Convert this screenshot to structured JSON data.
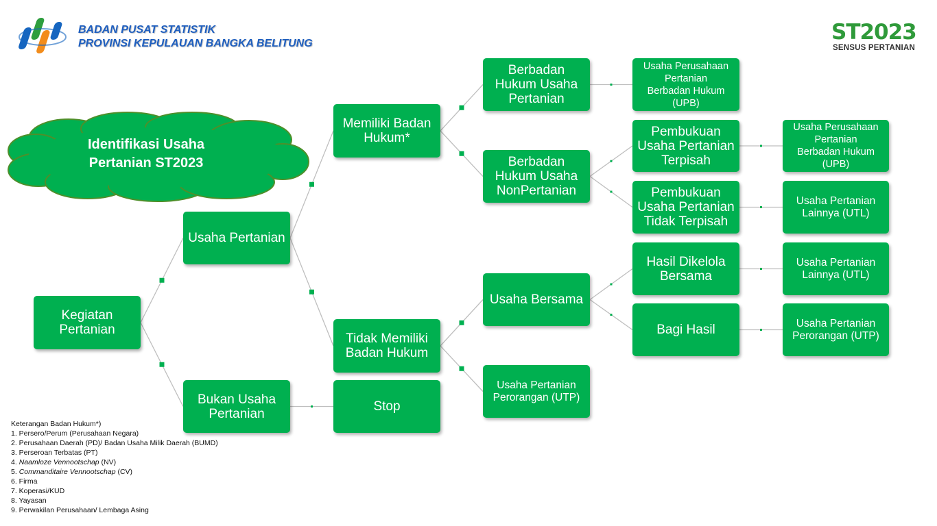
{
  "header": {
    "org_line1": "BADAN PUSAT STATISTIK",
    "org_line2": "PROVINSI KEPULAUAN BANGKA BELITUNG",
    "st_logo_text": "ST2023",
    "st_logo_sub": "SENSUS PERTANIAN"
  },
  "title_cloud": {
    "line1": "Identifikasi Usaha",
    "line2": "Pertanian ST2023"
  },
  "colors": {
    "node_fill": "#00b050",
    "cloud_fill": "#00b050",
    "cloud_stroke": "#4e8f2a",
    "org_text": "#1f5fbf",
    "edge": "#bfbfbf",
    "edge_marker": "#00b050"
  },
  "nodes": {
    "kegiatan": [
      "Kegiatan",
      "Pertanian"
    ],
    "usaha": [
      "Usaha Pertanian"
    ],
    "bukan": [
      "Bukan Usaha",
      "Pertanian"
    ],
    "memiliki": [
      "Memiliki Badan",
      "Hukum*"
    ],
    "tidak": [
      "Tidak Memiliki",
      "Badan Hukum"
    ],
    "stop": [
      "Stop"
    ],
    "bh_pertanian": [
      "Berbadan",
      "Hukum Usaha",
      "Pertanian"
    ],
    "bh_nonpertanian": [
      "Berbadan",
      "Hukum Usaha",
      "NonPertanian"
    ],
    "usaha_bersama": [
      "Usaha Bersama"
    ],
    "utp_1": [
      "Usaha  Pertanian",
      "Perorangan (UTP)"
    ],
    "upb_1": [
      "Usaha Perusahaan",
      "Pertanian",
      "Berbadan Hukum",
      "(UPB)"
    ],
    "pembukuan_terpisah": [
      "Pembukuan",
      "Usaha Pertanian",
      "Terpisah"
    ],
    "pembukuan_tidak": [
      "Pembukuan",
      "Usaha Pertanian",
      "Tidak Terpisah"
    ],
    "hasil_bersama": [
      "Hasil Dikelola",
      "Bersama"
    ],
    "bagi_hasil": [
      "Bagi Hasil"
    ],
    "upb_2": [
      "Usaha Perusahaan",
      "Pertanian",
      "Berbadan Hukum",
      "(UPB)"
    ],
    "utl_1": [
      "Usaha Pertanian",
      "Lainnya (UTL)"
    ],
    "utl_2": [
      "Usaha Pertanian",
      "Lainnya (UTL)"
    ],
    "utp_2": [
      "Usaha  Pertanian",
      "Perorangan (UTP)"
    ]
  },
  "edges": [
    [
      "kegiatan",
      "usaha"
    ],
    [
      "kegiatan",
      "bukan"
    ],
    [
      "usaha",
      "memiliki"
    ],
    [
      "usaha",
      "tidak"
    ],
    [
      "bukan",
      "stop"
    ],
    [
      "memiliki",
      "bh_pertanian"
    ],
    [
      "memiliki",
      "bh_nonpertanian"
    ],
    [
      "tidak",
      "usaha_bersama"
    ],
    [
      "tidak",
      "utp_1"
    ],
    [
      "bh_pertanian",
      "upb_1"
    ],
    [
      "bh_nonpertanian",
      "pembukuan_terpisah"
    ],
    [
      "bh_nonpertanian",
      "pembukuan_tidak"
    ],
    [
      "usaha_bersama",
      "hasil_bersama"
    ],
    [
      "usaha_bersama",
      "bagi_hasil"
    ],
    [
      "pembukuan_terpisah",
      "upb_2"
    ],
    [
      "pembukuan_tidak",
      "utl_1"
    ],
    [
      "hasil_bersama",
      "utl_2"
    ],
    [
      "bagi_hasil",
      "utp_2"
    ]
  ],
  "notes": {
    "title": "Keterangan Badan Hukum*)",
    "items": [
      "1. Persero/Perum (Perusahaan Negara)",
      "2. Perusahaan Daerah (PD)/ Badan Usaha Milik Daerah (BUMD)",
      "3. Perseroan Terbatas (PT)",
      "4. Naamloze Vennootschap (NV)",
      "5. Commanditaire Vennootschap (CV)",
      "6. Firma",
      "7. Koperasi/KUD",
      "8. Yayasan",
      "9. Perwakilan Perusahaan/ Lembaga Asing"
    ]
  }
}
